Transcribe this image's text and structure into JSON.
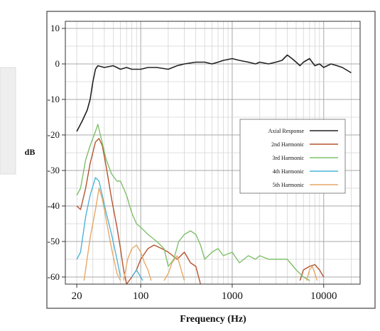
{
  "chart_data": {
    "type": "line",
    "xlabel": "Frequency (Hz)",
    "ylabel": "dB",
    "x_scale": "log",
    "xlim": [
      15,
      25000
    ],
    "ylim": [
      -62,
      12
    ],
    "grid": true,
    "legend_placement": "center-right",
    "x_ticks": [
      {
        "value": 20,
        "label": "20"
      },
      {
        "value": 100,
        "label": "100"
      },
      {
        "value": 1000,
        "label": "1000"
      },
      {
        "value": 10000,
        "label": "10000"
      }
    ],
    "y_ticks": [
      {
        "value": 10,
        "label": "10"
      },
      {
        "value": 0,
        "label": "0"
      },
      {
        "value": -10,
        "label": "-10"
      },
      {
        "value": -20,
        "label": "-20"
      },
      {
        "value": -30,
        "label": "-30"
      },
      {
        "value": -40,
        "label": "-40"
      },
      {
        "value": -50,
        "label": "-50"
      },
      {
        "value": -60,
        "label": "-60"
      }
    ],
    "series": [
      {
        "name": "Axial Response",
        "color": "#222222",
        "points": [
          [
            20,
            -19
          ],
          [
            23,
            -16
          ],
          [
            26,
            -13
          ],
          [
            28,
            -10
          ],
          [
            30,
            -5
          ],
          [
            32,
            -1.5
          ],
          [
            34,
            -0.5
          ],
          [
            40,
            -1
          ],
          [
            50,
            -0.5
          ],
          [
            60,
            -1.5
          ],
          [
            70,
            -1
          ],
          [
            80,
            -1.5
          ],
          [
            100,
            -1.5
          ],
          [
            120,
            -1
          ],
          [
            150,
            -1
          ],
          [
            200,
            -1.5
          ],
          [
            250,
            -0.5
          ],
          [
            300,
            0
          ],
          [
            400,
            0.5
          ],
          [
            500,
            0.5
          ],
          [
            600,
            0
          ],
          [
            700,
            0.5
          ],
          [
            800,
            1
          ],
          [
            1000,
            1.5
          ],
          [
            1200,
            1
          ],
          [
            1500,
            0.5
          ],
          [
            1800,
            0
          ],
          [
            2000,
            0.5
          ],
          [
            2500,
            0
          ],
          [
            3000,
            0.5
          ],
          [
            3500,
            1
          ],
          [
            4000,
            2.5
          ],
          [
            4500,
            1.5
          ],
          [
            5000,
            0.5
          ],
          [
            5500,
            -0.5
          ],
          [
            6000,
            0.5
          ],
          [
            7000,
            1.5
          ],
          [
            8000,
            -0.5
          ],
          [
            9000,
            0
          ],
          [
            10000,
            -1
          ],
          [
            12000,
            0
          ],
          [
            14000,
            -0.5
          ],
          [
            16000,
            -1
          ],
          [
            20000,
            -2.5
          ]
        ]
      },
      {
        "name": "2nd Harmonic",
        "color": "#b5532e",
        "points": [
          [
            20,
            -40
          ],
          [
            22,
            -41
          ],
          [
            25,
            -35
          ],
          [
            28,
            -28
          ],
          [
            32,
            -22
          ],
          [
            35,
            -21
          ],
          [
            38,
            -23
          ],
          [
            42,
            -29
          ],
          [
            48,
            -38
          ],
          [
            55,
            -46
          ],
          [
            60,
            -52
          ],
          [
            65,
            -58
          ],
          [
            70,
            -62
          ],
          [
            80,
            -60
          ],
          [
            90,
            -58
          ],
          [
            100,
            -55
          ],
          [
            120,
            -52
          ],
          [
            140,
            -51
          ],
          [
            170,
            -52
          ],
          [
            200,
            -53
          ],
          [
            250,
            -55
          ],
          [
            300,
            -53
          ],
          [
            350,
            -56
          ],
          [
            400,
            -57
          ],
          [
            450,
            -62
          ],
          [
            null,
            null
          ],
          [
            5500,
            -61
          ],
          [
            6000,
            -58
          ],
          [
            7000,
            -57
          ],
          [
            8000,
            -56.5
          ],
          [
            9000,
            -58
          ],
          [
            10000,
            -60
          ]
        ]
      },
      {
        "name": "3rd Harmonic",
        "color": "#7fc06a",
        "points": [
          [
            20,
            -37
          ],
          [
            22,
            -35
          ],
          [
            25,
            -27
          ],
          [
            28,
            -23
          ],
          [
            32,
            -19
          ],
          [
            34,
            -17
          ],
          [
            37,
            -21
          ],
          [
            42,
            -27
          ],
          [
            48,
            -31
          ],
          [
            55,
            -33
          ],
          [
            60,
            -33
          ],
          [
            70,
            -37
          ],
          [
            80,
            -42
          ],
          [
            90,
            -45
          ],
          [
            100,
            -46
          ],
          [
            120,
            -48
          ],
          [
            150,
            -50
          ],
          [
            180,
            -52
          ],
          [
            200,
            -57
          ],
          [
            230,
            -55
          ],
          [
            260,
            -50
          ],
          [
            300,
            -48
          ],
          [
            350,
            -47
          ],
          [
            400,
            -48
          ],
          [
            450,
            -51
          ],
          [
            500,
            -55
          ],
          [
            600,
            -53
          ],
          [
            700,
            -52
          ],
          [
            800,
            -54
          ],
          [
            1000,
            -53
          ],
          [
            1200,
            -56
          ],
          [
            1500,
            -54
          ],
          [
            1800,
            -55
          ],
          [
            2000,
            -54
          ],
          [
            2500,
            -55
          ],
          [
            3000,
            -55
          ],
          [
            4000,
            -55
          ],
          [
            5000,
            -58
          ],
          [
            6000,
            -60
          ],
          [
            7000,
            -61
          ]
        ]
      },
      {
        "name": "4th Harmonic",
        "color": "#4db3d9",
        "points": [
          [
            20,
            -55
          ],
          [
            22,
            -53
          ],
          [
            25,
            -43
          ],
          [
            28,
            -37
          ],
          [
            32,
            -32
          ],
          [
            35,
            -33
          ],
          [
            38,
            -37
          ],
          [
            42,
            -42
          ],
          [
            48,
            -48
          ],
          [
            55,
            -55
          ],
          [
            60,
            -60
          ],
          [
            null,
            null
          ],
          [
            80,
            -60
          ],
          [
            90,
            -58
          ],
          [
            100,
            -60
          ],
          [
            105,
            -61
          ]
        ]
      },
      {
        "name": "5th Harmonic",
        "color": "#e8a866",
        "points": [
          [
            24,
            -61
          ],
          [
            28,
            -49
          ],
          [
            32,
            -41
          ],
          [
            35,
            -35
          ],
          [
            38,
            -38
          ],
          [
            42,
            -44
          ],
          [
            48,
            -52
          ],
          [
            55,
            -59
          ],
          [
            60,
            -61
          ],
          [
            null,
            null
          ],
          [
            65,
            -61
          ],
          [
            72,
            -55
          ],
          [
            80,
            -52
          ],
          [
            90,
            -51
          ],
          [
            100,
            -53
          ],
          [
            110,
            -56
          ],
          [
            120,
            -58
          ],
          [
            130,
            -61
          ],
          [
            null,
            null
          ],
          [
            180,
            -61
          ],
          [
            200,
            -59
          ],
          [
            220,
            -56
          ],
          [
            250,
            -54
          ],
          [
            270,
            -57
          ],
          [
            300,
            -61
          ],
          [
            null,
            null
          ],
          [
            6500,
            -61
          ],
          [
            7000,
            -58
          ],
          [
            7500,
            -57
          ],
          [
            8000,
            -59
          ],
          [
            8500,
            -61
          ]
        ]
      }
    ]
  }
}
